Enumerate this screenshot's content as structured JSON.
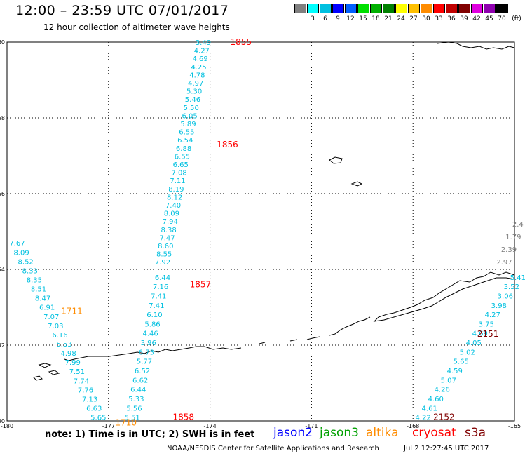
{
  "header": {
    "title": "12:00 – 23:59 UTC 07/01/2017",
    "subtitle": "12 hour collection of altimeter wave heights"
  },
  "legend": {
    "unit": "(ft)",
    "swatches": [
      {
        "color": "#808080",
        "label": ""
      },
      {
        "color": "#00ffff",
        "label": "3"
      },
      {
        "color": "#00c0e0",
        "label": "6"
      },
      {
        "color": "#0000ff",
        "label": "9"
      },
      {
        "color": "#0060ff",
        "label": "12"
      },
      {
        "color": "#00e000",
        "label": "15"
      },
      {
        "color": "#00b000",
        "label": "18"
      },
      {
        "color": "#008000",
        "label": "21"
      },
      {
        "color": "#ffff00",
        "label": "24"
      },
      {
        "color": "#ffc000",
        "label": "27"
      },
      {
        "color": "#ff8c00",
        "label": "30"
      },
      {
        "color": "#ff0000",
        "label": "33"
      },
      {
        "color": "#c00000",
        "label": "36"
      },
      {
        "color": "#800000",
        "label": "39"
      },
      {
        "color": "#e000e0",
        "label": "42"
      },
      {
        "color": "#9000b0",
        "label": "45"
      },
      {
        "color": "#000000",
        "label": "70"
      }
    ]
  },
  "axes": {
    "lat_labels": [
      "60",
      "58",
      "56",
      "54",
      "52",
      "50"
    ],
    "lon_labels": [
      "-180",
      "-177",
      "-174",
      "-171",
      "-168",
      "-165"
    ]
  },
  "passes": [
    {
      "satellite": "jason2",
      "color": "#00c0e0",
      "start": [
        -174.2,
        60.0
      ],
      "end": [
        -175.4,
        54.2
      ],
      "values": [
        "3.49",
        "4.27",
        "4.69",
        "4.25",
        "4.78",
        "4.97",
        "5.30",
        "5.46",
        "5.50",
        "6.05",
        "5.89",
        "6.55",
        "6.54",
        "6.88",
        "6.55",
        "6.65",
        "7.08",
        "7.11",
        "8.19",
        "8.12",
        "7.40",
        "8.09",
        "7.94",
        "8.38",
        "7.47",
        "8.60",
        "8.55",
        "7.92"
      ]
    },
    {
      "satellite": "jason2",
      "color": "#00c0e0",
      "start": [
        -175.4,
        53.8
      ],
      "end": [
        -176.3,
        50.1
      ],
      "values": [
        "6.44",
        "7.16",
        "7.41",
        "7.41",
        "6.10",
        "5.86",
        "4.46",
        "3.96",
        "6.73",
        "5.77",
        "6.52",
        "6.62",
        "6.44",
        "5.33",
        "5.56",
        "5.51"
      ]
    },
    {
      "satellite": "jason2",
      "color": "#00c0e0",
      "start": [
        -179.7,
        54.7
      ],
      "end": [
        -177.3,
        50.1
      ],
      "values": [
        "7.67",
        "8.09",
        "8.52",
        "8.33",
        "8.35",
        "8.51",
        "8.47",
        "6.91",
        "7.07",
        "7.03",
        "6.16",
        "5.53",
        "4.98",
        "7.99",
        "7.51",
        "7.74",
        "7.76",
        "7.13",
        "6.63",
        "5.65"
      ]
    },
    {
      "satellite": "jason2",
      "color": "#00c0e0",
      "start": [
        -164.9,
        53.8
      ],
      "end": [
        -167.7,
        50.1
      ],
      "values": [
        "5.41",
        "3.52",
        "3.06",
        "3.98",
        "4.27",
        "3.75",
        "4.69",
        "4.05",
        "5.02",
        "5.65",
        "4.59",
        "5.07",
        "4.26",
        "4.60",
        "4.61",
        "4.22"
      ]
    },
    {
      "satellite": "jason3",
      "color": "#808080",
      "start": [
        -164.9,
        55.2
      ],
      "end": [
        -165.3,
        54.2
      ],
      "values": [
        "2.4",
        "1.79",
        "2.39",
        "2.97"
      ]
    }
  ],
  "time_labels": [
    {
      "text": "1855",
      "color": "#ff0000",
      "lon": -173.4,
      "lat": 60.0
    },
    {
      "text": "1856",
      "color": "#ff0000",
      "lon": -173.8,
      "lat": 57.3
    },
    {
      "text": "1857",
      "color": "#ff0000",
      "lon": -174.6,
      "lat": 53.6
    },
    {
      "text": "1858",
      "color": "#ff0000",
      "lon": -175.1,
      "lat": 50.1
    },
    {
      "text": "1711",
      "color": "#ff8c00",
      "lon": -178.4,
      "lat": 52.9
    },
    {
      "text": "1710",
      "color": "#ff8c00",
      "lon": -176.8,
      "lat": 49.95
    },
    {
      "text": "2151",
      "color": "#800000",
      "lon": -166.1,
      "lat": 52.3
    },
    {
      "text": "2152",
      "color": "#800000",
      "lon": -167.4,
      "lat": 50.1
    }
  ],
  "footer": {
    "note": "note:  1) Time is in UTC;  2) SWH is in feet",
    "satellites": [
      {
        "name": "jason2",
        "color": "#0000ff"
      },
      {
        "name": "jason3",
        "color": "#00a000"
      },
      {
        "name": "altika",
        "color": "#ff8c00"
      },
      {
        "name": "cryosat",
        "color": "#ff0000"
      },
      {
        "name": "s3a",
        "color": "#800000"
      }
    ],
    "credit": "NOAA/NESDIS Center for Satellite Applications and Research",
    "timestamp": "Jul  2 12:27:45 UTC 2017"
  }
}
